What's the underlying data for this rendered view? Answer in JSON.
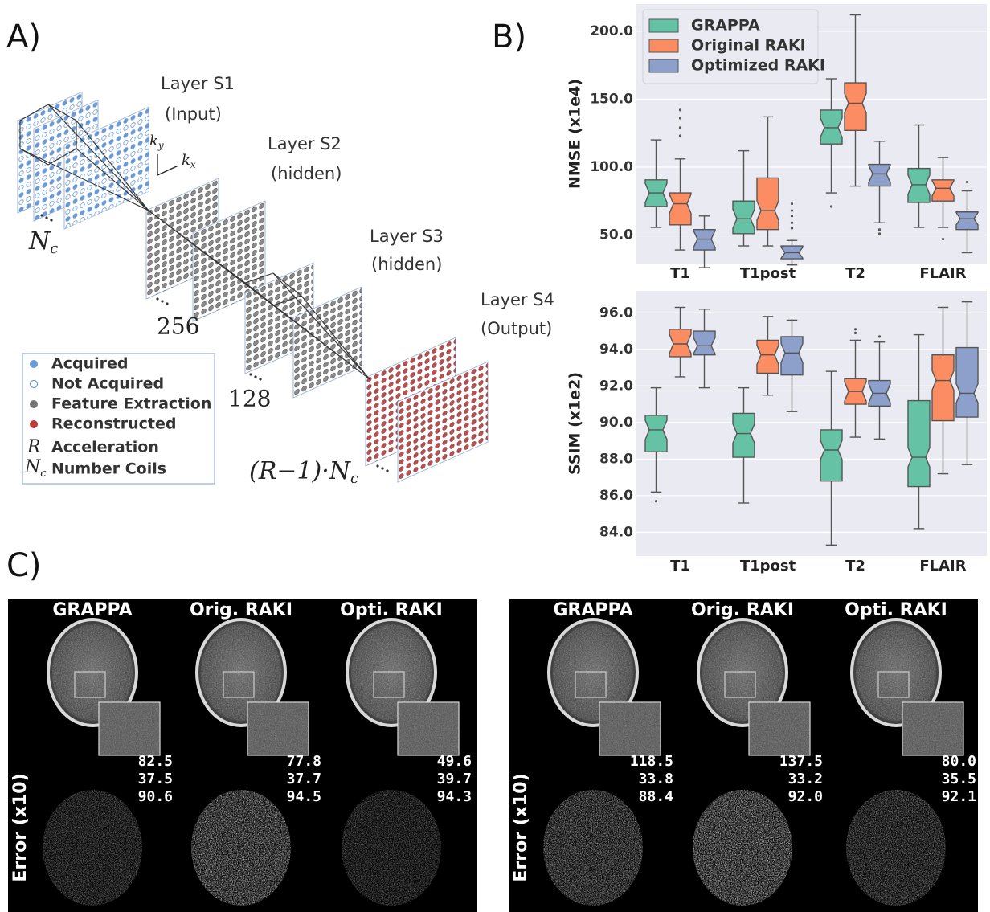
{
  "panel_a": {
    "label": "A)",
    "layers": [
      {
        "title": "Layer S1",
        "role": "(Input)"
      },
      {
        "title": "Layer S2",
        "role": "(hidden)"
      },
      {
        "title": "Layer S3",
        "role": "(hidden)"
      },
      {
        "title": "Layer S4",
        "role": "(Output)"
      }
    ],
    "axes": [
      {
        "base": "k",
        "sub": "y"
      },
      {
        "base": "k",
        "sub": "x"
      }
    ],
    "sizes": {
      "coils": {
        "base": "N",
        "sub": "c"
      },
      "s2": "256",
      "s3": "128",
      "s4": {
        "base": "(R−1)·N",
        "sub": "c"
      }
    },
    "legend": {
      "dots": [
        "Acquired",
        "Not Acquired",
        "Feature Extraction",
        "Reconstructed"
      ],
      "acceleration": {
        "symbol": "R",
        "text": "Acceleration"
      },
      "coils": {
        "base": "N",
        "sub": "c",
        "text": "Number Coils"
      }
    }
  },
  "panel_b": {
    "label": "B)"
  },
  "chart_data": [
    {
      "type": "box",
      "y_label": "NMSE (x1e4)",
      "categories": [
        "T1",
        "T1post",
        "T2",
        "FLAIR"
      ],
      "ylim": [
        29,
        220
      ],
      "yticks": [
        {
          "value": 50,
          "label": "50.0"
        },
        {
          "value": 100,
          "label": "100.0"
        },
        {
          "value": 150,
          "label": "150.0"
        },
        {
          "value": 200,
          "label": "200.0"
        }
      ],
      "grid": true,
      "legend": "upper left",
      "series": [
        {
          "name": "GRAPPA",
          "color": "#66c2a5",
          "boxes": [
            {
              "low": 55.6,
              "q1": 71,
              "median": 81,
              "q3": 90.6,
              "high": 120,
              "outliers": []
            },
            {
              "low": 42,
              "q1": 51,
              "median": 62,
              "q3": 75,
              "high": 112,
              "outliers": []
            },
            {
              "low": 81,
              "q1": 117,
              "median": 129,
              "q3": 142,
              "high": 165,
              "outliers": [
                71
              ]
            },
            {
              "low": 55.6,
              "q1": 74,
              "median": 87,
              "q3": 99,
              "high": 131,
              "outliers": []
            }
          ]
        },
        {
          "name": "Original RAKI",
          "color": "#fc8d62",
          "boxes": [
            {
              "low": 39,
              "q1": 57.5,
              "median": 73,
              "q3": 81,
              "high": 106,
              "outliers": [
                142,
                136,
                129,
                123
              ]
            },
            {
              "low": 42,
              "q1": 54,
              "median": 68,
              "q3": 92,
              "high": 137,
              "outliers": []
            },
            {
              "low": 86,
              "q1": 127,
              "median": 147,
              "q3": 162,
              "high": 212,
              "outliers": []
            },
            {
              "low": 55.6,
              "q1": 75,
              "median": 84.4,
              "q3": 90.6,
              "high": 107,
              "outliers": [
                47
              ]
            }
          ]
        },
        {
          "name": "Optimized RAKI",
          "color": "#8da0cb",
          "boxes": [
            {
              "low": 26,
              "q1": 39,
              "median": 47,
              "q3": 54,
              "high": 64,
              "outliers": []
            },
            {
              "low": 28,
              "q1": 32.5,
              "median": 37,
              "q3": 42,
              "high": 46,
              "outliers": [
                73,
                68,
                64,
                59,
                55
              ]
            },
            {
              "low": 59,
              "q1": 86,
              "median": 95,
              "q3": 102,
              "high": 119,
              "outliers": [
                54,
                51
              ]
            },
            {
              "low": 37,
              "q1": 54,
              "median": 62,
              "q3": 67,
              "high": 82.5,
              "outliers": [
                89
              ]
            }
          ]
        }
      ]
    },
    {
      "type": "box",
      "y_label": "SSIM (x1e2)",
      "categories": [
        "T1",
        "T1post",
        "T2",
        "FLAIR"
      ],
      "ylim": [
        82.7,
        97.2
      ],
      "yticks": [
        {
          "value": 84,
          "label": "84.0"
        },
        {
          "value": 86,
          "label": "86.0"
        },
        {
          "value": 88,
          "label": "88.0"
        },
        {
          "value": 90,
          "label": "90.0"
        },
        {
          "value": 92,
          "label": "92.0"
        },
        {
          "value": 94,
          "label": "94.0"
        },
        {
          "value": 96,
          "label": "96.0"
        }
      ],
      "grid": true,
      "series": [
        {
          "color": "#66c2a5",
          "boxes": [
            {
              "low": 86.2,
              "q1": 88.4,
              "median": 89.6,
              "q3": 90.4,
              "high": 91.9,
              "outliers": [
                85.7
              ]
            },
            {
              "low": 85.6,
              "q1": 88.1,
              "median": 89.4,
              "q3": 90.5,
              "high": 91.9,
              "outliers": []
            },
            {
              "low": 83.3,
              "q1": 86.8,
              "median": 88.5,
              "q3": 89.6,
              "high": 92.8,
              "outliers": []
            },
            {
              "low": 84.2,
              "q1": 86.5,
              "median": 88.1,
              "q3": 91.2,
              "high": 94.8,
              "outliers": []
            }
          ]
        },
        {
          "color": "#fc8d62",
          "boxes": [
            {
              "low": 92.5,
              "q1": 93.6,
              "median": 94.3,
              "q3": 95.1,
              "high": 96.3,
              "outliers": []
            },
            {
              "low": 91.5,
              "q1": 92.7,
              "median": 93.7,
              "q3": 94.5,
              "high": 95.8,
              "outliers": []
            },
            {
              "low": 89.2,
              "q1": 91.0,
              "median": 91.7,
              "q3": 92.4,
              "high": 94.5,
              "outliers": [
                95.1,
                94.9
              ]
            },
            {
              "low": 87.2,
              "q1": 90.1,
              "median": 92.3,
              "q3": 93.7,
              "high": 96.3,
              "outliers": []
            }
          ]
        },
        {
          "color": "#8da0cb",
          "boxes": [
            {
              "low": 91.9,
              "q1": 93.7,
              "median": 94.2,
              "q3": 95.0,
              "high": 96.2,
              "outliers": []
            },
            {
              "low": 90.6,
              "q1": 92.6,
              "median": 93.8,
              "q3": 94.7,
              "high": 95.6,
              "outliers": []
            },
            {
              "low": 89.1,
              "q1": 90.9,
              "median": 91.6,
              "q3": 92.3,
              "high": 94.4,
              "outliers": [
                94.7
              ]
            },
            {
              "low": 87.7,
              "q1": 90.3,
              "median": 91.6,
              "q3": 94.1,
              "high": 96.6,
              "outliers": []
            }
          ]
        }
      ]
    }
  ],
  "panel_c": {
    "label": "C)",
    "error_label": "Error (x10)",
    "groups": [
      {
        "columns": [
          {
            "title": "GRAPPA",
            "metrics": [
              "82.5",
              "37.5",
              "90.6"
            ]
          },
          {
            "title": "Orig. RAKI",
            "metrics": [
              "77.8",
              "37.7",
              "94.5"
            ]
          },
          {
            "title": "Opti. RAKI",
            "metrics": [
              "49.6",
              "39.7",
              "94.3"
            ]
          }
        ]
      },
      {
        "columns": [
          {
            "title": "GRAPPA",
            "metrics": [
              "118.5",
              "33.8",
              "88.4"
            ]
          },
          {
            "title": "Orig. RAKI",
            "metrics": [
              "137.5",
              "33.2",
              "92.0"
            ]
          },
          {
            "title": "Opti. RAKI",
            "metrics": [
              "80.0",
              "35.5",
              "92.1"
            ]
          }
        ]
      }
    ]
  }
}
